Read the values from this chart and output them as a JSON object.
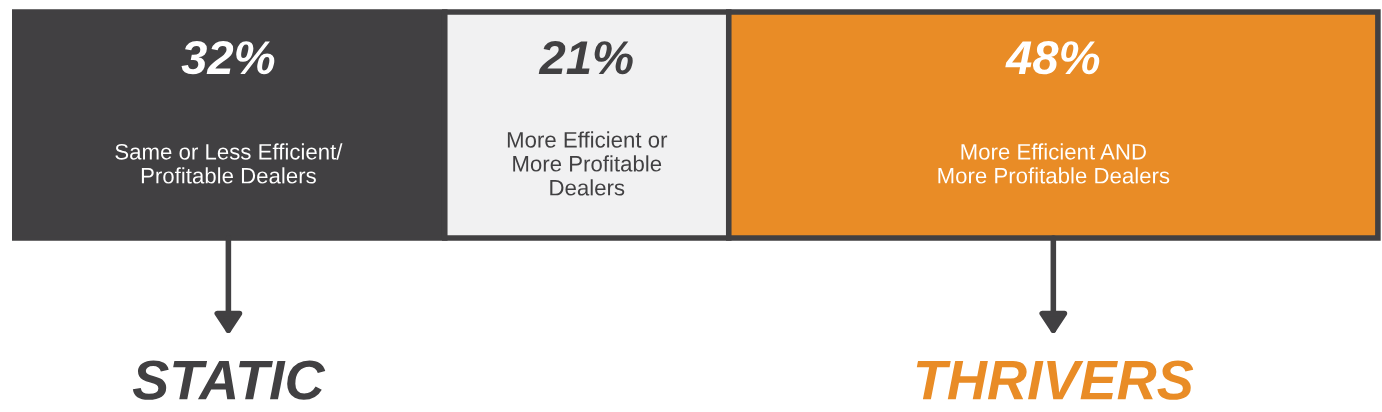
{
  "chart_data": {
    "type": "bar",
    "orientation": "horizontal",
    "stacked": true,
    "categories": [
      null
    ],
    "legend": false,
    "series": [
      {
        "name": "Same or Less Efficient/\nProfitable Dealers",
        "color": "#414042",
        "values": [
          32
        ],
        "value_labels": [
          "32%"
        ]
      },
      {
        "name": "More Efficient or\nMore Profitable\nDealers",
        "color": "#f1f1f2",
        "values": [
          21
        ],
        "value_labels": [
          "21%"
        ]
      },
      {
        "name": "More Efficient AND\nMore Profitable Dealers",
        "color": "#e98c26",
        "values": [
          48
        ],
        "value_labels": [
          "48%"
        ]
      }
    ],
    "annotations": [
      "STATIC",
      "THRIVERS"
    ]
  }
}
